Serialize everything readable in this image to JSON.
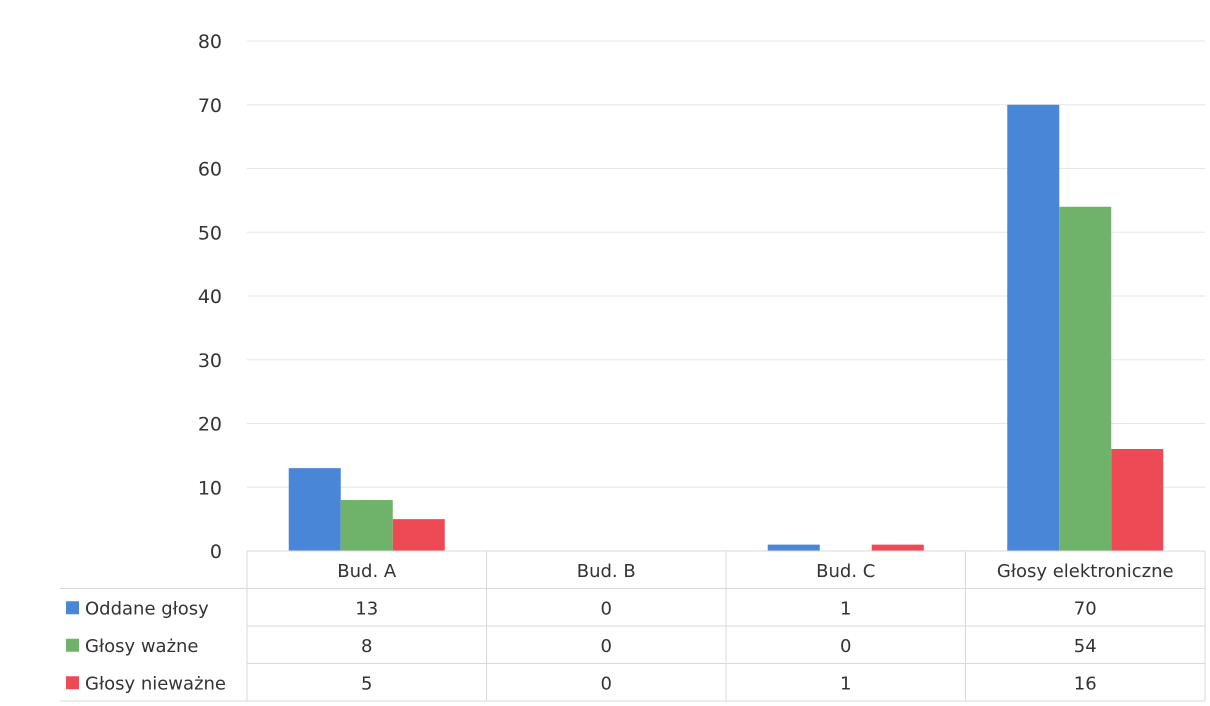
{
  "chart_data": {
    "type": "bar",
    "categories": [
      "Bud. A",
      "Bud. B",
      "Bud. C",
      "Głosy elektroniczne"
    ],
    "series": [
      {
        "name": "Oddane głosy",
        "values": [
          13,
          0,
          1,
          70
        ],
        "color": "#4a86d8"
      },
      {
        "name": "Głosy ważne",
        "values": [
          8,
          0,
          0,
          54
        ],
        "color": "#6fb36a"
      },
      {
        "name": "Głosy nieważne",
        "values": [
          5,
          0,
          1,
          16
        ],
        "color": "#ee4a55"
      }
    ],
    "ylim": [
      0,
      80
    ],
    "yticks": [
      0,
      10,
      20,
      30,
      40,
      50,
      60,
      70,
      80
    ],
    "grid": true,
    "legend": "data-table-left",
    "data_table": true
  }
}
